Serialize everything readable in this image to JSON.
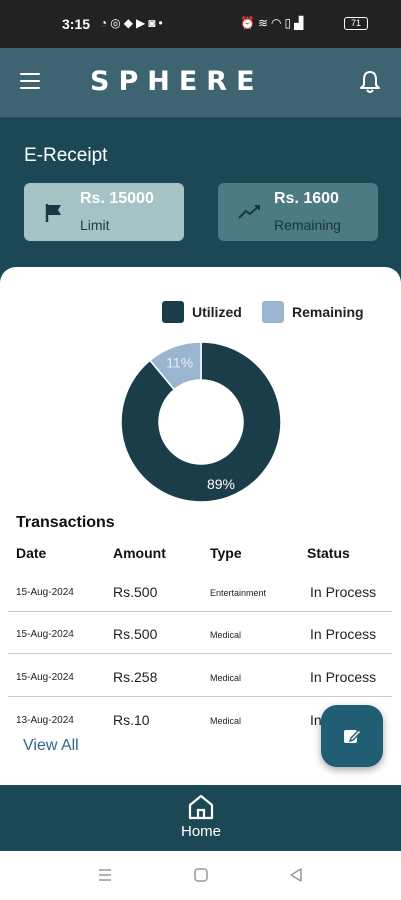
{
  "status_bar": {
    "time": "3:15",
    "left_icons": [
      "whatsapp-icon",
      "chrome-icon",
      "messenger-icon",
      "youtube-icon",
      "instagram-icon",
      "dot-icon"
    ],
    "right_icons": [
      "alarm-icon",
      "vibrate-icon",
      "wifi-icon",
      "volte-icon",
      "signal-icon"
    ],
    "battery": "71"
  },
  "header": {
    "logo": "SPHERE",
    "menu_icon": "hamburger-menu-icon",
    "notification_icon": "bell-icon"
  },
  "receipt": {
    "title": "E-Receipt",
    "limit_card": {
      "amount": "Rs. 15000",
      "label": "Limit",
      "icon": "flag-icon"
    },
    "remaining_card": {
      "amount": "Rs. 1600",
      "label": "Remaining",
      "icon": "trend-icon"
    }
  },
  "chart_data": {
    "type": "pie",
    "legend": [
      "Utilized",
      "Remaining"
    ],
    "slices": [
      {
        "name": "Utilized",
        "value": 89,
        "label": "89%",
        "color": "#1b3d4a"
      },
      {
        "name": "Remaining",
        "value": 11,
        "label": "11%",
        "color": "#9ab5cf"
      }
    ],
    "legend_placement": "top-right"
  },
  "transactions": {
    "title": "Transactions",
    "columns": [
      "Date",
      "Amount",
      "Type",
      "Status"
    ],
    "rows": [
      {
        "date": "15-Aug-2024",
        "amount": "Rs.500",
        "type": "Entertainment",
        "status": "In Process"
      },
      {
        "date": "15-Aug-2024",
        "amount": "Rs.500",
        "type": "Medical",
        "status": "In Process"
      },
      {
        "date": "15-Aug-2024",
        "amount": "Rs.258",
        "type": "Medical",
        "status": "In Process"
      },
      {
        "date": "13-Aug-2024",
        "amount": "Rs.10",
        "type": "Medical",
        "status": "In Process"
      }
    ],
    "view_all": "View All"
  },
  "fab": {
    "icon": "edit-icon"
  },
  "bottom_nav": {
    "home_label": "Home",
    "home_icon": "home-icon"
  },
  "android_nav": {
    "icons": [
      "recents-icon",
      "home-square-icon",
      "back-icon"
    ]
  },
  "colors": {
    "primary": "#1c4855",
    "header": "#3d6470",
    "limit_card": "#a5c3c5",
    "remaining_card": "#4c7b83",
    "utilized": "#1b3d4a",
    "remaining": "#9ab5cf",
    "link": "#2d6a85",
    "fab": "#1f5e73"
  }
}
